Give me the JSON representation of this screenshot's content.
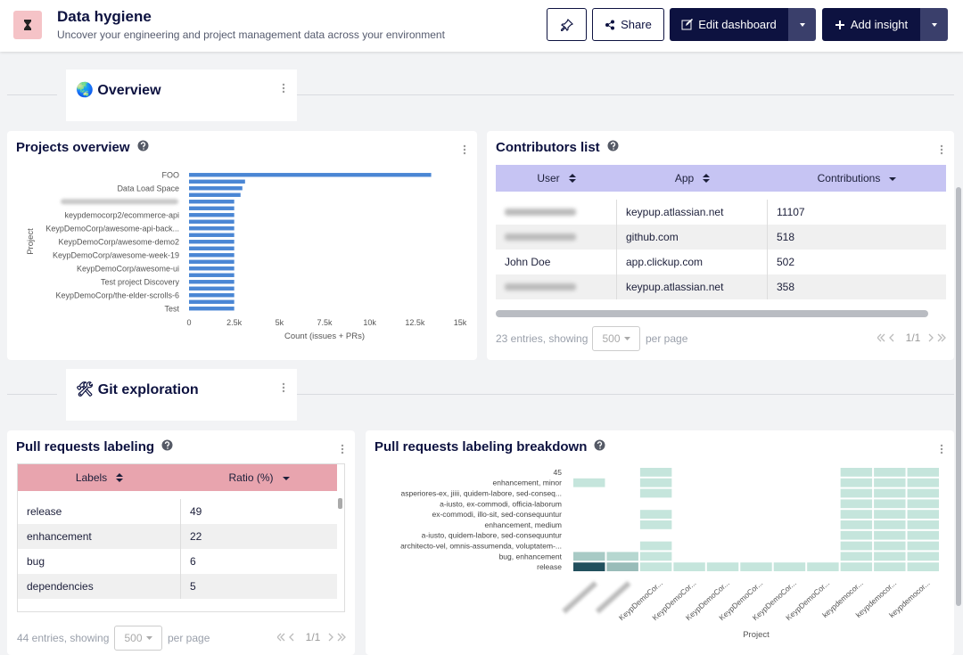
{
  "header": {
    "title": "Data hygiene",
    "subtitle": "Uncover your engineering and project management data across your environment",
    "buttons": [
      "Share",
      "Edit dashboard",
      "Add insight"
    ]
  },
  "sections": [
    "🌏 Overview",
    "🛠 Git exploration"
  ],
  "chart_data": [
    {
      "type": "bar",
      "title": "Projects overview",
      "orientation": "horizontal",
      "categories": [
        "FOO",
        null,
        "Data Load Space",
        null,
        null,
        null,
        "keypdemocorp2/ecommerce-api",
        null,
        "KeypDemoCorp/awesome-api-back...",
        null,
        "KeypDemoCorp/awesome-demo2",
        null,
        "KeypDemoCorp/awesome-week-19",
        null,
        "KeypDemoCorp/awesome-ui",
        null,
        "Test project Discovery",
        null,
        "KeypDemoCorp/the-elder-scrolls-6",
        null,
        "Test"
      ],
      "values": [
        13400,
        3100,
        2950,
        2850,
        2500,
        2500,
        2500,
        2500,
        2500,
        2500,
        2500,
        2500,
        2500,
        2500,
        2500,
        2500,
        2500,
        2500,
        2500,
        2500,
        2500
      ],
      "color": "#4a86d4",
      "xlim": [
        0,
        15000
      ],
      "xticks": [
        0,
        {
          "value": 2500,
          "label": "2.5k"
        },
        {
          "value": 5000,
          "label": "5k"
        },
        {
          "value": 7500,
          "label": "7.5k"
        },
        {
          "value": 10000,
          "label": "10k"
        },
        {
          "value": 12500,
          "label": "12.5k"
        },
        {
          "value": 15000,
          "label": "15k"
        }
      ],
      "x_label": "Count (issues + PRs)",
      "y_label": "Project"
    },
    {
      "type": "heatmap",
      "title": "Pull requests labeling breakdown",
      "x_label": "Project",
      "x": [
        null,
        null,
        "KeypDemoCor...",
        "KeypDemoCor...",
        "KeypDemoCor...",
        "KeypDemoCor...",
        "KeypDemoCor...",
        "KeypDemoCor...",
        "keypdemocor...",
        "keypdemocor...",
        "keypdemocor..."
      ],
      "y": [
        "45",
        "enhancement, minor",
        "asperiores-ex, jiiii, quidem-labore, sed-conseq...",
        "a-iusto, ex-commodi, officia-laborum",
        "ex-commodi, illo-sit, sed-consequuntur",
        "enhancement, medium",
        "a-iusto, quidem-labore, sed-consequuntur",
        "architecto-vel, omnis-assumenda, voluptatem-...",
        "bug, enhancement",
        "release"
      ],
      "values": [
        [
          null,
          null,
          1,
          null,
          null,
          null,
          null,
          null,
          1,
          1,
          1
        ],
        [
          1,
          null,
          1,
          null,
          null,
          null,
          null,
          null,
          1,
          1,
          1
        ],
        [
          null,
          null,
          1,
          null,
          null,
          null,
          null,
          null,
          1,
          1,
          1
        ],
        [
          null,
          null,
          null,
          null,
          null,
          null,
          null,
          null,
          1,
          1,
          1
        ],
        [
          null,
          null,
          1,
          null,
          null,
          null,
          null,
          null,
          1,
          1,
          1
        ],
        [
          null,
          null,
          1,
          null,
          null,
          null,
          null,
          null,
          1,
          1,
          1
        ],
        [
          null,
          null,
          null,
          null,
          null,
          null,
          null,
          null,
          1,
          1,
          1
        ],
        [
          null,
          null,
          1,
          null,
          null,
          null,
          null,
          null,
          1,
          1,
          1
        ],
        [
          3,
          2,
          1,
          null,
          null,
          null,
          null,
          null,
          1,
          1,
          1
        ],
        [
          12,
          4,
          1,
          1,
          1,
          1,
          1,
          1,
          1,
          1,
          1
        ]
      ],
      "zlim": [
        0,
        12
      ],
      "colors": [
        "#d4f2e7",
        "#22505e"
      ]
    }
  ],
  "contributors": {
    "title": "Contributors list",
    "columns": [
      "User",
      "App",
      "Contributions"
    ],
    "rows": [
      [
        null,
        "keypup.atlassian.net",
        "11107"
      ],
      [
        null,
        "github.com",
        "518"
      ],
      [
        "John Doe",
        "app.clickup.com",
        "502"
      ],
      [
        null,
        "keypup.atlassian.net",
        "358"
      ]
    ],
    "footer": {
      "entries": "23 entries, showing",
      "page_size": "500",
      "per_page": "per page",
      "page": "1/1"
    }
  },
  "pr_labeling": {
    "title": "Pull requests labeling",
    "columns": [
      "Labels",
      "Ratio (%)"
    ],
    "rows": [
      [
        "release",
        "49"
      ],
      [
        "enhancement",
        "22"
      ],
      [
        "bug",
        "6"
      ],
      [
        "dependencies",
        "5"
      ]
    ],
    "footer": {
      "entries": "44 entries, showing",
      "page_size": "500",
      "per_page": "per page",
      "page": "1/1"
    }
  }
}
